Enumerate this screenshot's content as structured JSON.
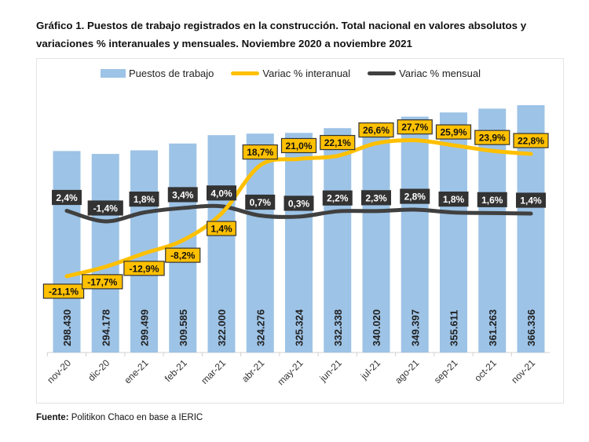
{
  "title": "Gráfico 1. Puestos de trabajo registrados en la construcción. Total nacional en valores absolutos y variaciones % interanuales y mensuales. Noviembre 2020 a noviembre 2021",
  "source_label": "Fuente:",
  "source_text": " Politikon Chaco en base a IERIC",
  "chart_data": {
    "type": "bar+line",
    "categories": [
      "nov-20",
      "dic-20",
      "ene-21",
      "feb-21",
      "mar-21",
      "abr-21",
      "may-21",
      "jun-21",
      "jul-21",
      "ago-21",
      "sep-21",
      "oct-21",
      "nov-21"
    ],
    "series": [
      {
        "name": "Puestos de trabajo",
        "type": "bar",
        "color": "#9dc3e6",
        "values": [
          298430,
          294178,
          299499,
          309585,
          322000,
          324276,
          325324,
          332338,
          340020,
          349397,
          355611,
          361263,
          366336
        ],
        "labels": [
          "298.430",
          "294.178",
          "299.499",
          "309.585",
          "322.000",
          "324.276",
          "325.324",
          "332.338",
          "340.020",
          "349.397",
          "355.611",
          "361.263",
          "366.336"
        ]
      },
      {
        "name": "Variac % interanual",
        "type": "line",
        "color": "#ffc000",
        "values": [
          -21.1,
          -17.7,
          -12.9,
          -8.2,
          1.4,
          18.7,
          21.0,
          22.1,
          26.6,
          27.7,
          25.9,
          23.9,
          22.8
        ],
        "labels": [
          "-21,1%",
          "-17,7%",
          "-12,9%",
          "-8,2%",
          "1,4%",
          "18,7%",
          "21,0%",
          "22,1%",
          "26,6%",
          "27,7%",
          "25,9%",
          "23,9%",
          "22,8%"
        ]
      },
      {
        "name": "Variac % mensual",
        "type": "line",
        "color": "#404040",
        "values": [
          2.4,
          -1.4,
          1.8,
          3.4,
          4.0,
          0.7,
          0.3,
          2.2,
          2.3,
          2.8,
          1.8,
          1.6,
          1.4
        ],
        "labels": [
          "2,4%",
          "-1,4%",
          "1,8%",
          "3,4%",
          "4,0%",
          "0,7%",
          "0,3%",
          "2,2%",
          "2,3%",
          "2,8%",
          "1,8%",
          "1,6%",
          "1,4%"
        ]
      }
    ],
    "legend_position": "top",
    "grid": false
  }
}
